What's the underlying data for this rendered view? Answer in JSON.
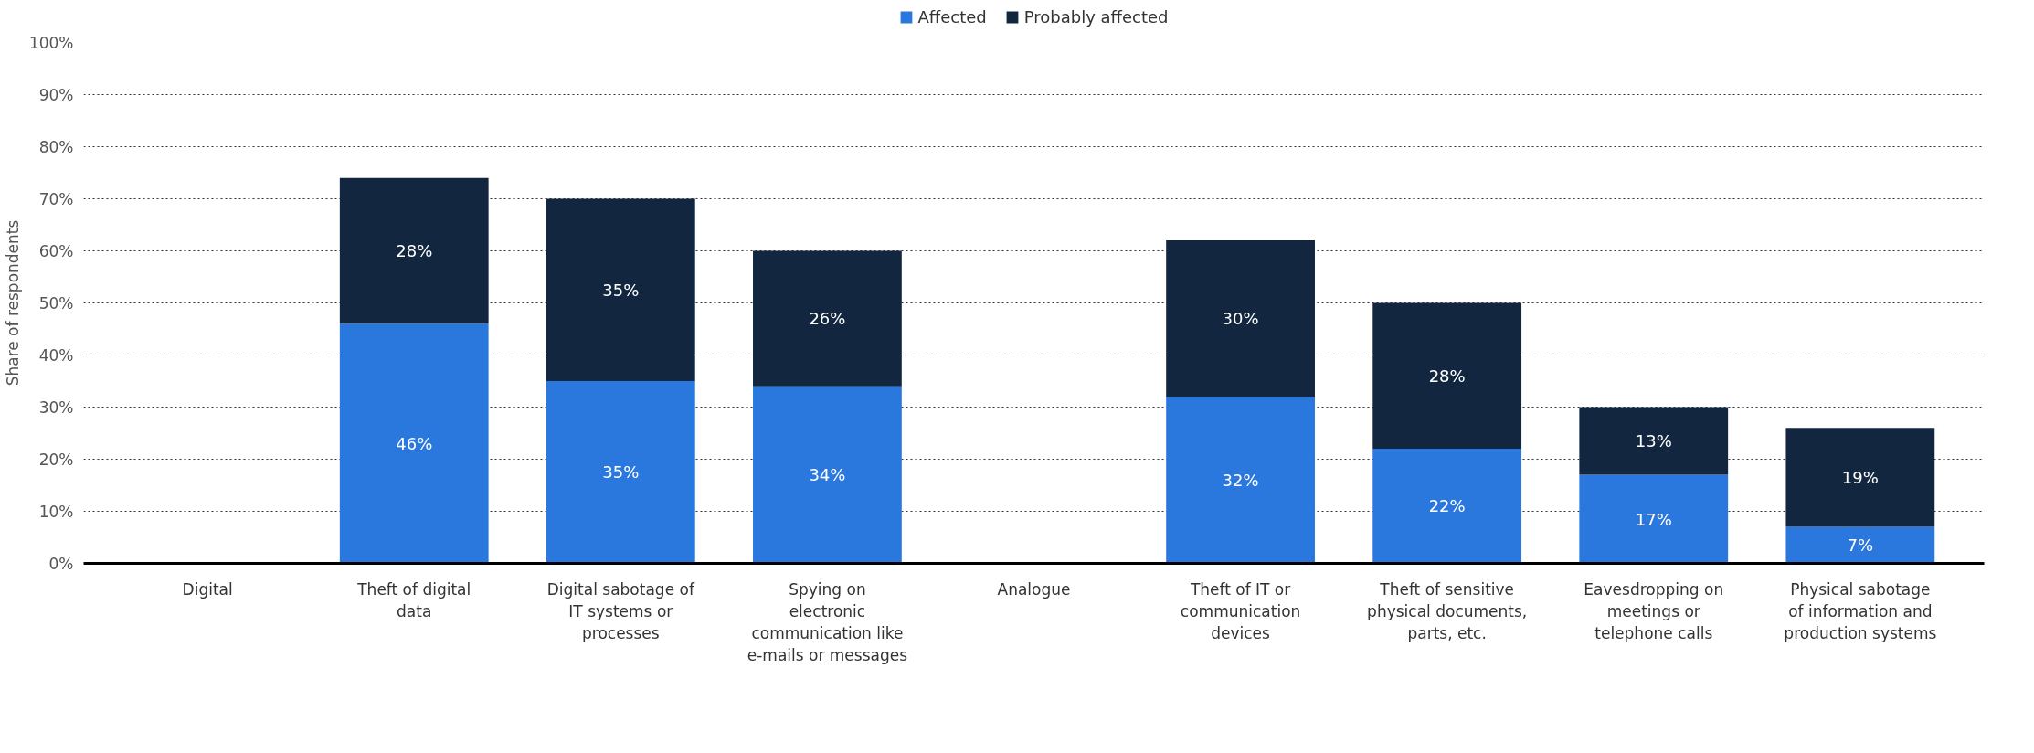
{
  "chart_data": {
    "type": "bar",
    "stacked": true,
    "ylabel": "Share of respondents",
    "categories": [
      "Digital",
      "Theft of digital data",
      "Digital sabotage of IT systems or processes",
      "Spying on electronic communication like e-mails or messages",
      "Analogue",
      "Theft of IT or communication devices",
      "Theft of sensitive physical documents, parts, etc.",
      "Eavesdropping on meetings or telephone calls",
      "Physical sabotage of information and production systems"
    ],
    "series": [
      {
        "name": "Affected",
        "color": "#2a78dd",
        "values": [
          null,
          46,
          35,
          34,
          null,
          32,
          22,
          17,
          7
        ],
        "value_labels": [
          null,
          "46%",
          "35%",
          "34%",
          null,
          "32%",
          "22%",
          "17%",
          "7%"
        ]
      },
      {
        "name": "Probably affected",
        "color": "#12263f",
        "values": [
          null,
          28,
          35,
          26,
          null,
          30,
          28,
          13,
          19
        ],
        "value_labels": [
          null,
          "28%",
          "35%",
          "26%",
          null,
          "30%",
          "28%",
          "13%",
          "19%"
        ]
      }
    ],
    "ylim": [
      0,
      100
    ],
    "yticks": [
      {
        "value": 0,
        "label": "0%"
      },
      {
        "value": 10,
        "label": "10%"
      },
      {
        "value": 20,
        "label": "20%"
      },
      {
        "value": 30,
        "label": "30%"
      },
      {
        "value": 40,
        "label": "40%"
      },
      {
        "value": 50,
        "label": "50%"
      },
      {
        "value": 60,
        "label": "60%"
      },
      {
        "value": 70,
        "label": "70%"
      },
      {
        "value": 80,
        "label": "80%"
      },
      {
        "value": 90,
        "label": "90%"
      },
      {
        "value": 100,
        "label": "100%"
      }
    ],
    "grid": "y",
    "legend": "top"
  }
}
